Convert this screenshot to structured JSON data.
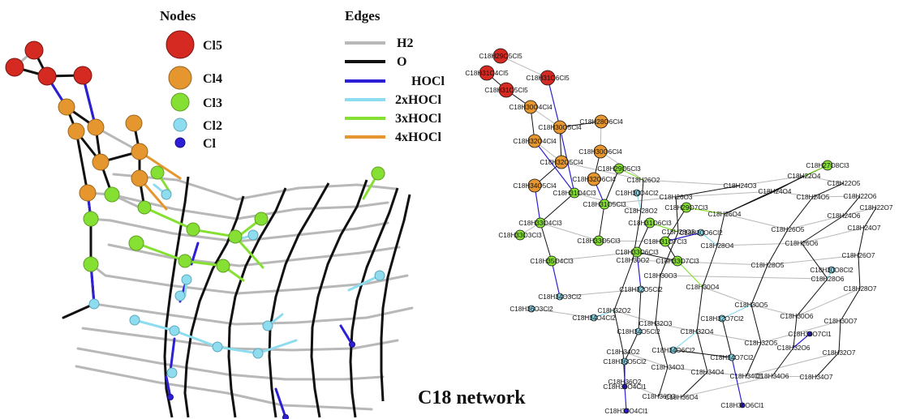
{
  "legend": {
    "nodes_title": "Nodes",
    "edges_title": "Edges",
    "node_types": [
      {
        "label": "Cl5",
        "color": "#d42a22"
      },
      {
        "label": "Cl4",
        "color": "#e6962e"
      },
      {
        "label": "Cl3",
        "color": "#86e033"
      },
      {
        "label": "Cl2",
        "color": "#8edcef"
      },
      {
        "label": "Cl",
        "color": "#2d1fd6"
      }
    ],
    "edge_types": [
      {
        "label": "H2",
        "color": "#b8b8b8"
      },
      {
        "label": "O",
        "color": "#111111"
      },
      {
        "label": "HOCl",
        "color": "#2d1fd6"
      },
      {
        "label": "2xHOCl",
        "color": "#8edcef"
      },
      {
        "label": "3xHOCl",
        "color": "#86e033"
      },
      {
        "label": "4xHOCl",
        "color": "#e6962e"
      }
    ]
  },
  "caption": "C18 network",
  "network_labels": {
    "Cl5": [
      "C18H29O5Cl5",
      "C18H31O4Cl5",
      "C18H31O6Cl5",
      "C18H31O5Cl5"
    ],
    "Cl4": [
      "C18H30O4Cl4",
      "C18H30O5Cl4",
      "C18H28O6Cl4",
      "C18H32O4Cl4",
      "C18H30O6Cl4",
      "C18H32O5Cl4",
      "C18H32O6Cl4",
      "C18H34O5Cl4"
    ],
    "Cl3": [
      "C18H29O5Cl3",
      "C18H27O8Cl3",
      "C18H31O4Cl3",
      "C18H31O5Cl3",
      "C18H29O7Cl3",
      "C18H33O4Cl3",
      "C18H31O6Cl3",
      "C18H33O3Cl3",
      "C18H33O5Cl3",
      "C18H31O7Cl3",
      "C18H33O6Cl3",
      "C18H35O4Cl3",
      "C18H33O7Cl3"
    ],
    "Cl2": [
      "C18H30O4Cl2",
      "C18H30O6Cl2",
      "C18H30O8Cl2",
      "C18H32O5Cl2",
      "C18H34O3Cl2",
      "C18H36O3Cl2",
      "C18H34O4Cl2",
      "C18H32O7Cl2",
      "C18H34O5Cl2",
      "C18H34O6Cl2",
      "C18H36O5Cl2",
      "C18H34O7Cl2"
    ],
    "Cl": [
      "C18H34O7Cl1",
      "C18H36O4Cl1",
      "C18H37O4Cl1",
      "C18H36O6Cl1"
    ],
    "none": [
      "C18H26O2",
      "C18H24O3",
      "C18H22O4",
      "C18H22O5",
      "C18H26O3",
      "C18H24O4",
      "C18H24O5",
      "C18H22O6",
      "C18H28O2",
      "C18H26O4",
      "C18H22O7",
      "C18H28O3",
      "C18H24O6",
      "C18H26O5",
      "C18H24O7",
      "C18H28O4",
      "C18H26O6",
      "C18H26O7",
      "C18H30O2",
      "C18H28O5",
      "C18H28O6",
      "C18H30O3",
      "C18H28O7",
      "C18H30O4",
      "C18H30O5",
      "C18H32O2",
      "C18H30O6",
      "C18H30O7",
      "C18H32O3",
      "C18H32O4",
      "C18H32O5",
      "C18H32O6",
      "C18H32O7",
      "C18H34O2",
      "C18H34O3",
      "C18H34O4",
      "C18H34O5",
      "C18H34O6",
      "C18H34O7",
      "C18H36O2",
      "C18H36O3",
      "C18H36O4"
    ]
  }
}
